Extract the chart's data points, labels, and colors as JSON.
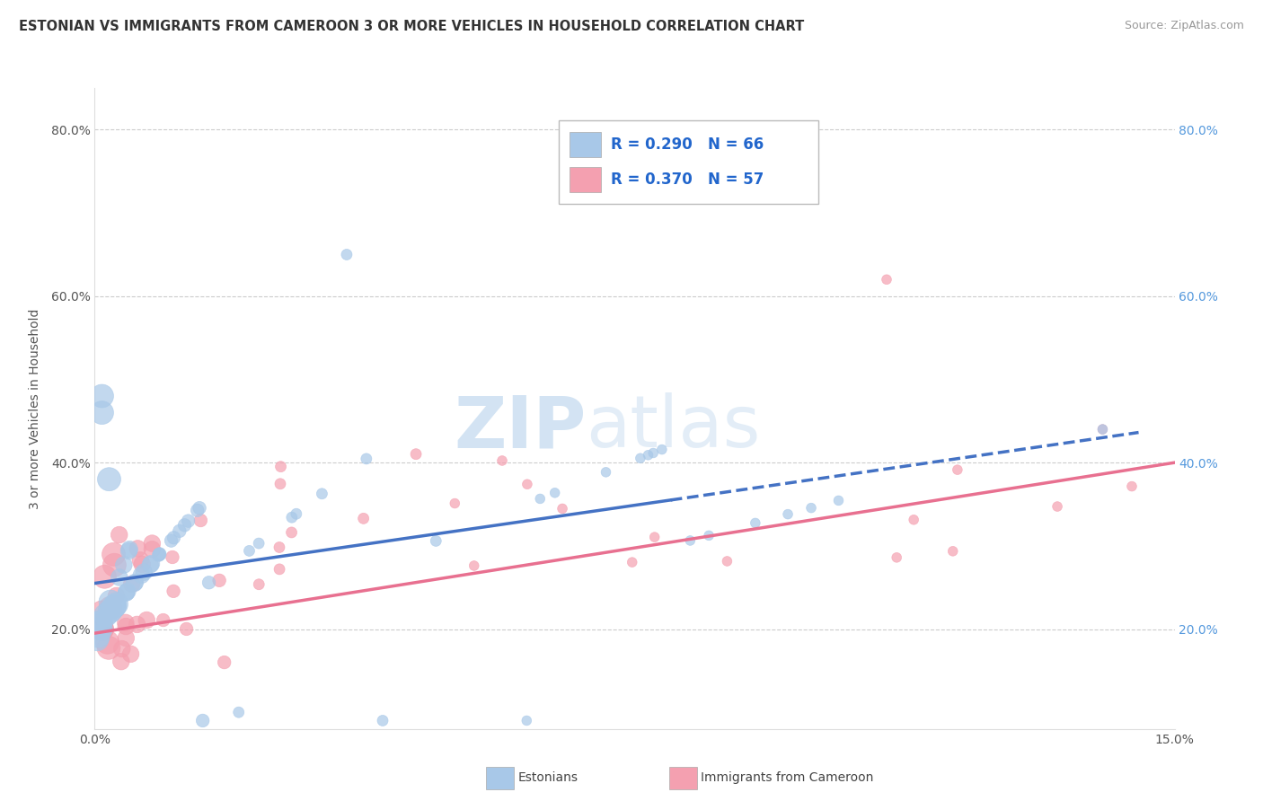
{
  "title": "ESTONIAN VS IMMIGRANTS FROM CAMEROON 3 OR MORE VEHICLES IN HOUSEHOLD CORRELATION CHART",
  "source": "Source: ZipAtlas.com",
  "ylabel": "3 or more Vehicles in Household",
  "legend_label1": "Estonians",
  "legend_label2": "Immigrants from Cameroon",
  "r1": "0.290",
  "n1": "66",
  "r2": "0.370",
  "n2": "57",
  "color_estonian": "#a8c8e8",
  "color_cameroon": "#f4a0b0",
  "color_est_line": "#4472c4",
  "color_cam_line": "#e87090",
  "xmin": 0.0,
  "xmax": 0.15,
  "ymin": 0.08,
  "ymax": 0.85,
  "yticks": [
    0.2,
    0.4,
    0.6,
    0.8
  ],
  "right_tick_color": "#5599dd",
  "background_color": "#ffffff",
  "grid_color": "#cccccc",
  "watermark_zip_color": "#c8d8e8",
  "watermark_atlas_color": "#c8d8e8"
}
